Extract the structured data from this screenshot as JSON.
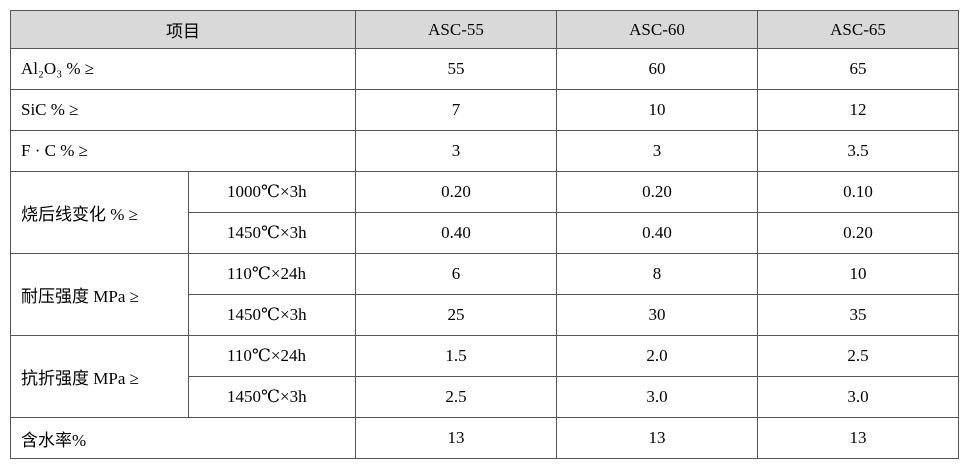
{
  "header": {
    "label": "项目",
    "columns": [
      "ASC-55",
      "ASC-60",
      "ASC-65"
    ]
  },
  "rows": [
    {
      "label": "Al₂O₃ % ≥",
      "values": [
        "55",
        "60",
        "65"
      ]
    },
    {
      "label": "SiC % ≥",
      "values": [
        "7",
        "10",
        "12"
      ]
    },
    {
      "label": "F · C % ≥",
      "values": [
        "3",
        "3",
        "3.5"
      ]
    },
    {
      "label": "烧后线变化  % ≥",
      "items": [
        {
          "condition": "1000℃×3h",
          "values": [
            "0.20",
            "0.20",
            "0.10"
          ]
        },
        {
          "condition": "1450℃×3h",
          "values": [
            "0.40",
            "0.40",
            "0.20"
          ]
        }
      ]
    },
    {
      "label": "耐压强度  MPa ≥",
      "items": [
        {
          "condition": "110℃×24h",
          "values": [
            "6",
            "8",
            "10"
          ]
        },
        {
          "condition": "1450℃×3h",
          "values": [
            "25",
            "30",
            "35"
          ]
        }
      ]
    },
    {
      "label": "抗折强度  MPa ≥",
      "items": [
        {
          "condition": "110℃×24h",
          "values": [
            "1.5",
            "2.0",
            "2.5"
          ]
        },
        {
          "condition": "1450℃×3h",
          "values": [
            "2.5",
            "3.0",
            "3.0"
          ]
        }
      ]
    },
    {
      "label": "含水率%",
      "values": [
        "13",
        "13",
        "13"
      ]
    }
  ]
}
